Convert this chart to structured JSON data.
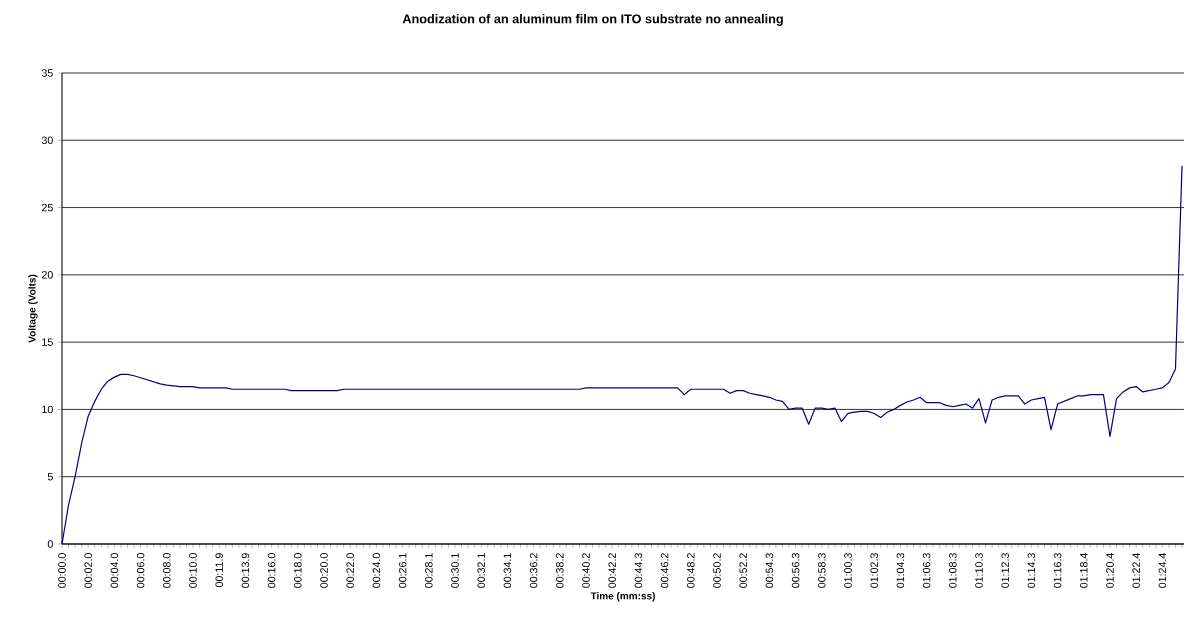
{
  "chart_data": {
    "type": "line",
    "title": "Anodization of an aluminum film on ITO substrate no annealing",
    "xlabel": "Time (mm:ss)",
    "ylabel": "Voltage (Volts)",
    "categories": [
      "00:00.0",
      null,
      null,
      null,
      "00:02.0",
      null,
      null,
      null,
      "00:04.0",
      null,
      null,
      null,
      "00:06.0",
      null,
      null,
      null,
      "00:08.0",
      null,
      null,
      null,
      "00:10.0",
      null,
      null,
      null,
      "00:11.9",
      null,
      null,
      null,
      "00:13.9",
      null,
      null,
      null,
      "00:16.0",
      null,
      null,
      null,
      "00:18.0",
      null,
      null,
      null,
      "00:20.0",
      null,
      null,
      null,
      "00:22.0",
      null,
      null,
      null,
      "00:24.0",
      null,
      null,
      null,
      "00:26.1",
      null,
      null,
      null,
      "00:28.1",
      null,
      null,
      null,
      "00:30.1",
      null,
      null,
      null,
      "00:32.1",
      null,
      null,
      null,
      "00:34.1",
      null,
      null,
      null,
      "00:36.2",
      null,
      null,
      null,
      "00:38.2",
      null,
      null,
      null,
      "00:40.2",
      null,
      null,
      null,
      "00:42.2",
      null,
      null,
      null,
      "00:44.3",
      null,
      null,
      null,
      "00:46.2",
      null,
      null,
      null,
      "00:48.2",
      null,
      null,
      null,
      "00:50.2",
      null,
      null,
      null,
      "00:52.2",
      null,
      null,
      null,
      "00:54.3",
      null,
      null,
      null,
      "00:56.3",
      null,
      null,
      null,
      "00:58.3",
      null,
      null,
      null,
      "01:00.3",
      null,
      null,
      null,
      "01:02.3",
      null,
      null,
      null,
      "01:04.3",
      null,
      null,
      null,
      "01:06.3",
      null,
      null,
      null,
      "01:08.3",
      null,
      null,
      null,
      "01:10.3",
      null,
      null,
      null,
      "01:12.3",
      null,
      null,
      null,
      "01:14.3",
      null,
      null,
      null,
      "01:16.3",
      null,
      null,
      null,
      "01:18.4",
      null,
      null,
      null,
      "01:20.4",
      null,
      null,
      null,
      "01:22.4",
      null,
      null,
      null,
      "01:24.4",
      null,
      null,
      null
    ],
    "values": [
      0,
      2.9,
      5.0,
      7.5,
      9.5,
      10.6,
      11.5,
      12.1,
      12.4,
      12.6,
      12.6,
      12.5,
      12.35,
      12.2,
      12.05,
      11.9,
      11.8,
      11.75,
      11.7,
      11.7,
      11.7,
      11.6,
      11.6,
      11.6,
      11.6,
      11.6,
      11.5,
      11.5,
      11.5,
      11.5,
      11.5,
      11.5,
      11.5,
      11.5,
      11.5,
      11.4,
      11.4,
      11.4,
      11.4,
      11.4,
      11.4,
      11.4,
      11.4,
      11.5,
      11.5,
      11.5,
      11.5,
      11.5,
      11.5,
      11.5,
      11.5,
      11.5,
      11.5,
      11.5,
      11.5,
      11.5,
      11.5,
      11.5,
      11.5,
      11.5,
      11.5,
      11.5,
      11.5,
      11.5,
      11.5,
      11.5,
      11.5,
      11.5,
      11.5,
      11.5,
      11.5,
      11.5,
      11.5,
      11.5,
      11.5,
      11.5,
      11.5,
      11.5,
      11.5,
      11.5,
      11.6,
      11.6,
      11.6,
      11.6,
      11.6,
      11.6,
      11.6,
      11.6,
      11.6,
      11.6,
      11.6,
      11.6,
      11.6,
      11.6,
      11.6,
      11.1,
      11.5,
      11.5,
      11.5,
      11.5,
      11.5,
      11.5,
      11.2,
      11.4,
      11.4,
      11.2,
      11.1,
      11.0,
      10.9,
      10.7,
      10.6,
      10.0,
      10.1,
      10.1,
      8.9,
      10.1,
      10.1,
      10.0,
      10.1,
      9.1,
      9.7,
      9.8,
      9.85,
      9.85,
      9.7,
      9.4,
      9.8,
      10.0,
      10.3,
      10.55,
      10.7,
      10.9,
      10.5,
      10.5,
      10.5,
      10.3,
      10.2,
      10.3,
      10.4,
      10.1,
      10.8,
      9.0,
      10.7,
      10.9,
      11.0,
      11.0,
      11.0,
      10.4,
      10.7,
      10.8,
      10.9,
      8.5,
      10.4,
      10.6,
      10.8,
      11.0,
      11.0,
      11.1,
      11.1,
      11.1,
      8.0,
      10.8,
      11.3,
      11.6,
      11.7,
      11.3,
      11.4,
      11.5,
      11.6,
      12.0,
      13.0,
      28.1
    ],
    "color": "#000080",
    "grid": "y",
    "line_style": "solid",
    "marker": "none",
    "ylim": [
      0,
      35
    ],
    "yticks": [
      0,
      5,
      10,
      15,
      20,
      25,
      30,
      35
    ]
  }
}
